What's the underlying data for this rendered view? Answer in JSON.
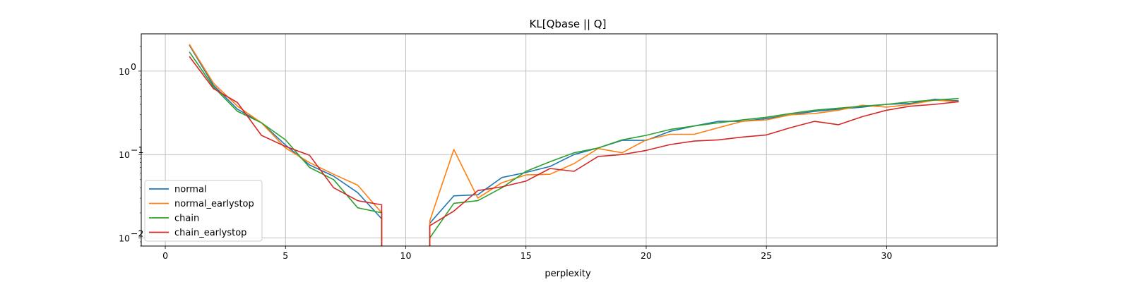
{
  "chart_data": {
    "type": "line",
    "title": "KL[Qbase || Q]",
    "xlabel": "perplexity",
    "ylabel": "",
    "yscale": "log",
    "xlim": [
      -1,
      34.6
    ],
    "ylim": [
      0.008,
      2.8
    ],
    "xticks": [
      0,
      5,
      10,
      15,
      20,
      25,
      30
    ],
    "yticks": [
      {
        "value": 1,
        "mantissa": "10",
        "exponent": "0"
      },
      {
        "value": 0.1,
        "mantissa": "10",
        "exponent": "−1"
      },
      {
        "value": 0.01,
        "mantissa": "10",
        "exponent": "−2"
      }
    ],
    "grid": true,
    "legend_position": "lower-left",
    "x": [
      1,
      2,
      3,
      4,
      5,
      6,
      7,
      8,
      9,
      10,
      11,
      12,
      13,
      14,
      15,
      16,
      17,
      18,
      19,
      20,
      21,
      22,
      23,
      24,
      25,
      26,
      27,
      28,
      29,
      30,
      31,
      32,
      33
    ],
    "series": [
      {
        "name": "normal",
        "color": "#1f77b4",
        "values": [
          2.05,
          0.68,
          0.35,
          0.24,
          0.13,
          0.075,
          0.055,
          0.035,
          0.017,
          null,
          0.015,
          0.032,
          0.033,
          0.053,
          0.061,
          0.072,
          0.1,
          0.12,
          0.148,
          0.148,
          0.19,
          0.22,
          0.25,
          0.25,
          0.27,
          0.3,
          0.33,
          0.35,
          0.37,
          0.4,
          0.41,
          0.46,
          0.44
        ]
      },
      {
        "name": "normal_earlystop",
        "color": "#ff7f0e",
        "values": [
          2.1,
          0.72,
          0.38,
          0.24,
          0.12,
          0.08,
          0.058,
          0.043,
          0.02,
          null,
          0.016,
          0.115,
          0.03,
          0.046,
          0.057,
          0.058,
          0.078,
          0.118,
          0.105,
          0.15,
          0.175,
          0.175,
          0.21,
          0.25,
          0.26,
          0.3,
          0.31,
          0.34,
          0.39,
          0.37,
          0.4,
          0.45,
          0.43
        ]
      },
      {
        "name": "chain",
        "color": "#2ca02c",
        "values": [
          1.7,
          0.65,
          0.33,
          0.24,
          0.15,
          0.07,
          0.05,
          0.023,
          0.02,
          null,
          0.01,
          0.026,
          0.028,
          0.04,
          0.063,
          0.082,
          0.105,
          0.12,
          0.15,
          0.17,
          0.2,
          0.22,
          0.24,
          0.26,
          0.28,
          0.31,
          0.34,
          0.36,
          0.38,
          0.4,
          0.43,
          0.45,
          0.47
        ]
      },
      {
        "name": "chain_earlystop",
        "color": "#d62728",
        "values": [
          1.5,
          0.62,
          0.42,
          0.17,
          0.125,
          0.098,
          0.04,
          0.028,
          0.025,
          null,
          0.014,
          0.021,
          0.037,
          0.041,
          0.048,
          0.068,
          0.063,
          0.095,
          0.1,
          0.112,
          0.132,
          0.145,
          0.15,
          0.162,
          0.172,
          0.21,
          0.25,
          0.228,
          0.285,
          0.34,
          0.38,
          0.4,
          0.43
        ]
      }
    ],
    "gap_drops": [
      {
        "x": 9,
        "direction": "down"
      },
      {
        "x": 11,
        "direction": "up"
      }
    ]
  }
}
